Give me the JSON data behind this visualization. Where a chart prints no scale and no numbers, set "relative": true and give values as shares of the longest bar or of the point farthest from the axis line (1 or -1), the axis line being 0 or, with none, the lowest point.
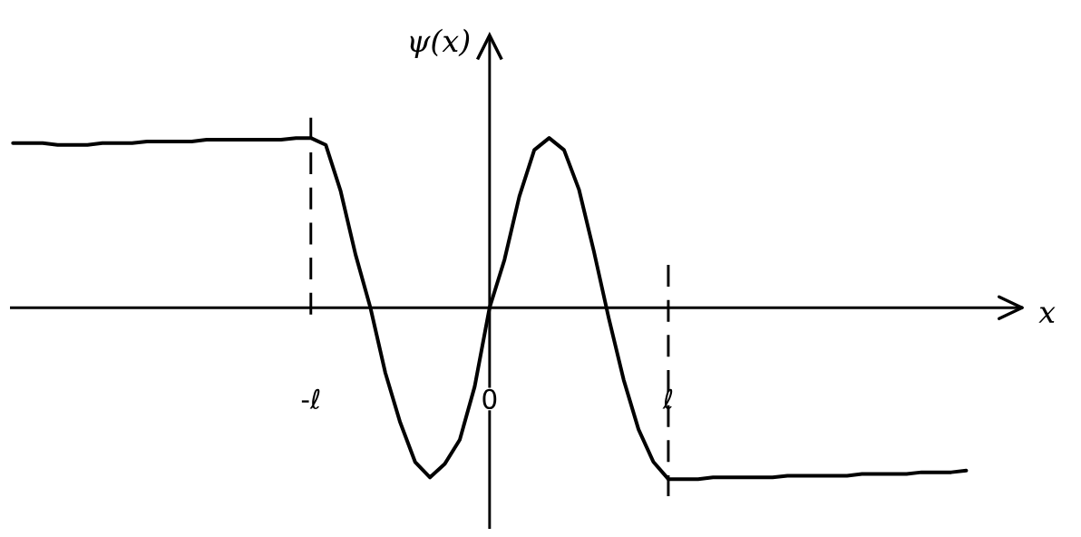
{
  "chart_data": {
    "type": "line",
    "relative": true,
    "xlabel": "x",
    "ylabel": "ψ(x)",
    "categories": [
      null,
      null,
      null,
      null,
      null,
      null,
      null,
      null,
      null,
      null,
      null,
      null,
      null,
      null,
      null,
      null,
      null,
      null,
      null,
      null,
      "-ℓ",
      null,
      null,
      null,
      null,
      null,
      null,
      null,
      null,
      null,
      null,
      null,
      "0",
      null,
      null,
      null,
      null,
      null,
      null,
      null,
      null,
      null,
      null,
      null,
      "ℓ",
      null,
      null,
      null,
      null,
      null,
      null,
      null,
      null,
      null,
      null,
      null,
      null,
      null,
      null,
      null,
      null,
      null,
      null,
      null,
      null
    ],
    "series": [
      {
        "color": "#000000",
        "values": [
          0.96,
          0.96,
          0.96,
          0.95,
          0.95,
          0.95,
          0.96,
          0.96,
          0.96,
          0.97,
          0.97,
          0.97,
          0.97,
          0.98,
          0.98,
          0.98,
          0.98,
          0.98,
          0.98,
          0.99,
          0.99,
          0.95,
          0.68,
          0.31,
          0,
          -0.38,
          -0.67,
          -0.9,
          -0.99,
          -0.91,
          -0.77,
          -0.46,
          0,
          0.28,
          0.65,
          0.92,
          0.99,
          0.92,
          0.69,
          0.33,
          -0.06,
          -0.42,
          -0.71,
          -0.9,
          -1.0,
          -1.0,
          -1.0,
          -0.99,
          -0.99,
          -0.99,
          -0.99,
          -0.99,
          -0.98,
          -0.98,
          -0.98,
          -0.98,
          -0.98,
          -0.97,
          -0.97,
          -0.97,
          -0.97,
          -0.96,
          -0.96,
          -0.96,
          -0.95
        ]
      }
    ],
    "ref_lines": [
      {
        "axis": "x",
        "value": "-ℓ",
        "line_style": "dashed"
      },
      {
        "axis": "x",
        "value": "ℓ",
        "line_style": "dashed"
      }
    ]
  }
}
